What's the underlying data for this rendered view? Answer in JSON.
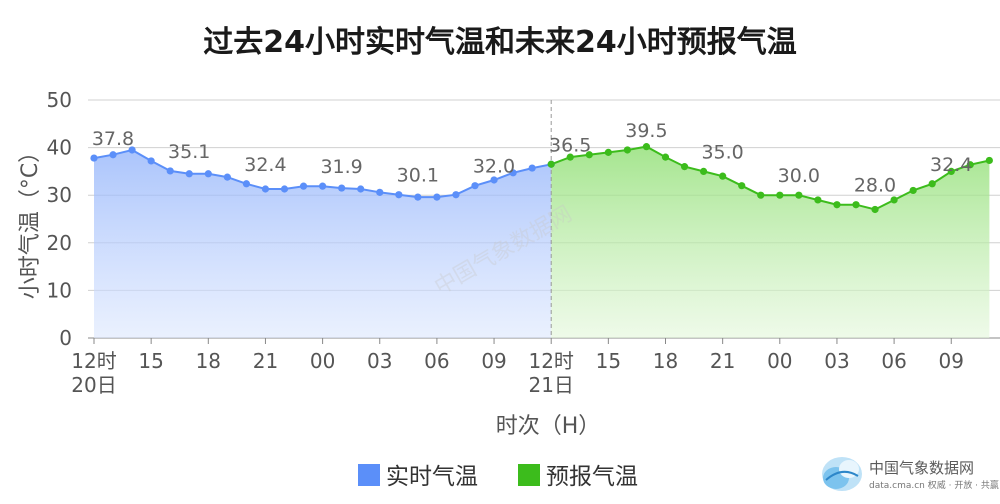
{
  "chart_data": {
    "type": "area",
    "title": "过去24小时实时气温和未来24小时预报气温",
    "xlabel": "时次（H）",
    "ylabel": "小时气温（°C）",
    "ylim": [
      0,
      50
    ],
    "yticks": [
      "0",
      "10",
      "20",
      "30",
      "40",
      "50"
    ],
    "xticks": [
      {
        "index": 0,
        "label": "12时",
        "sub": "20日"
      },
      {
        "index": 3,
        "label": "15"
      },
      {
        "index": 6,
        "label": "18"
      },
      {
        "index": 9,
        "label": "21"
      },
      {
        "index": 12,
        "label": "00"
      },
      {
        "index": 15,
        "label": "03"
      },
      {
        "index": 18,
        "label": "06"
      },
      {
        "index": 21,
        "label": "09"
      },
      {
        "index": 24,
        "label": "12时",
        "sub": "21日"
      },
      {
        "index": 27,
        "label": "15"
      },
      {
        "index": 30,
        "label": "18"
      },
      {
        "index": 33,
        "label": "21"
      },
      {
        "index": 36,
        "label": "00"
      },
      {
        "index": 39,
        "label": "03"
      },
      {
        "index": 42,
        "label": "06"
      },
      {
        "index": 45,
        "label": "09"
      }
    ],
    "grid": true,
    "legend_position": "bottom",
    "series": [
      {
        "name": "实时气温",
        "color": "#5b8ff9",
        "start_index": 0,
        "values": [
          37.8,
          38.5,
          39.5,
          37.2,
          35.1,
          34.5,
          34.5,
          33.8,
          32.4,
          31.3,
          31.3,
          31.9,
          31.9,
          31.5,
          31.3,
          30.6,
          30.1,
          29.6,
          29.6,
          30.1,
          32.0,
          33.2,
          34.7,
          35.7,
          36.5
        ],
        "labeled": [
          {
            "index": 0,
            "text": "37.8"
          },
          {
            "index": 4,
            "text": "35.1"
          },
          {
            "index": 8,
            "text": "32.4"
          },
          {
            "index": 12,
            "text": "31.9"
          },
          {
            "index": 16,
            "text": "30.1"
          },
          {
            "index": 20,
            "text": "32.0"
          },
          {
            "index": 24,
            "text": "36.5"
          }
        ]
      },
      {
        "name": "预报气温",
        "color": "#3cbc1c",
        "start_index": 24,
        "values": [
          36.5,
          38.0,
          38.5,
          39.0,
          39.5,
          40.2,
          38.0,
          36.0,
          35.0,
          34.0,
          32.0,
          30.0,
          30.0,
          30.0,
          29.0,
          28.0,
          28.0,
          27.0,
          29.0,
          31.0,
          32.4,
          35.0,
          36.4,
          37.3
        ],
        "labeled": [
          {
            "index": 24,
            "text": "36.5"
          },
          {
            "index": 28,
            "text": "39.5"
          },
          {
            "index": 32,
            "text": "35.0"
          },
          {
            "index": 36,
            "text": "30.0"
          },
          {
            "index": 40,
            "text": "28.0"
          },
          {
            "index": 44,
            "text": "32.4"
          }
        ]
      }
    ]
  },
  "brand": {
    "name_cn": "中国气象数据网",
    "name_en": "data.cma.cn 权威 · 开放 · 共赢",
    "watermark": "中国气象数据网"
  }
}
